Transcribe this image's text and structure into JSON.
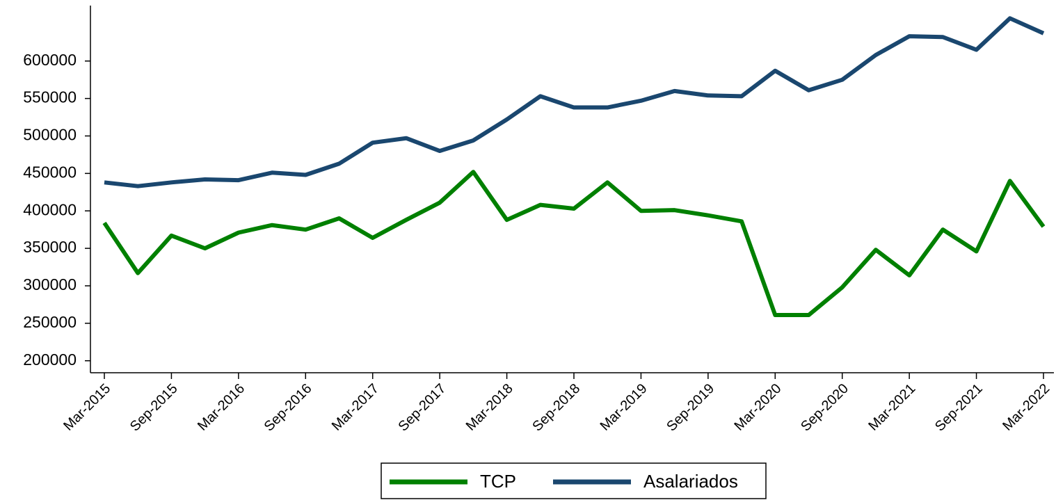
{
  "chart_data": {
    "type": "line",
    "categories": [
      "Mar-2015",
      null,
      "Sep-2015",
      null,
      "Mar-2016",
      null,
      "Sep-2016",
      null,
      "Mar-2017",
      null,
      "Sep-2017",
      null,
      "Mar-2018",
      null,
      "Sep-2018",
      null,
      "Mar-2019",
      null,
      "Sep-2019",
      null,
      "Mar-2020",
      null,
      "Sep-2020",
      null,
      "Mar-2021",
      null,
      "Sep-2021",
      null,
      "Mar-2022"
    ],
    "series": [
      {
        "name": "TCP",
        "color": "#008000",
        "values": [
          384000,
          317000,
          367000,
          350000,
          371000,
          381000,
          375000,
          390000,
          364000,
          388000,
          411000,
          452000,
          388000,
          408000,
          403000,
          438000,
          400000,
          401000,
          394000,
          386000,
          261000,
          261000,
          298000,
          348000,
          314000,
          375000,
          346000,
          440000,
          379000
        ]
      },
      {
        "name": "Asalariados",
        "color": "#1a476f",
        "values": [
          438000,
          433000,
          438000,
          442000,
          441000,
          451000,
          448000,
          463000,
          491000,
          497000,
          480000,
          494000,
          522000,
          553000,
          538000,
          538000,
          547000,
          560000,
          554000,
          553000,
          587000,
          561000,
          575000,
          608000,
          633000,
          632000,
          615000,
          657000,
          637000
        ]
      }
    ],
    "ylim": [
      184000,
      674000
    ],
    "yticks": [
      200000,
      250000,
      300000,
      350000,
      400000,
      450000,
      500000,
      550000,
      600000
    ],
    "legend": "bottom"
  }
}
